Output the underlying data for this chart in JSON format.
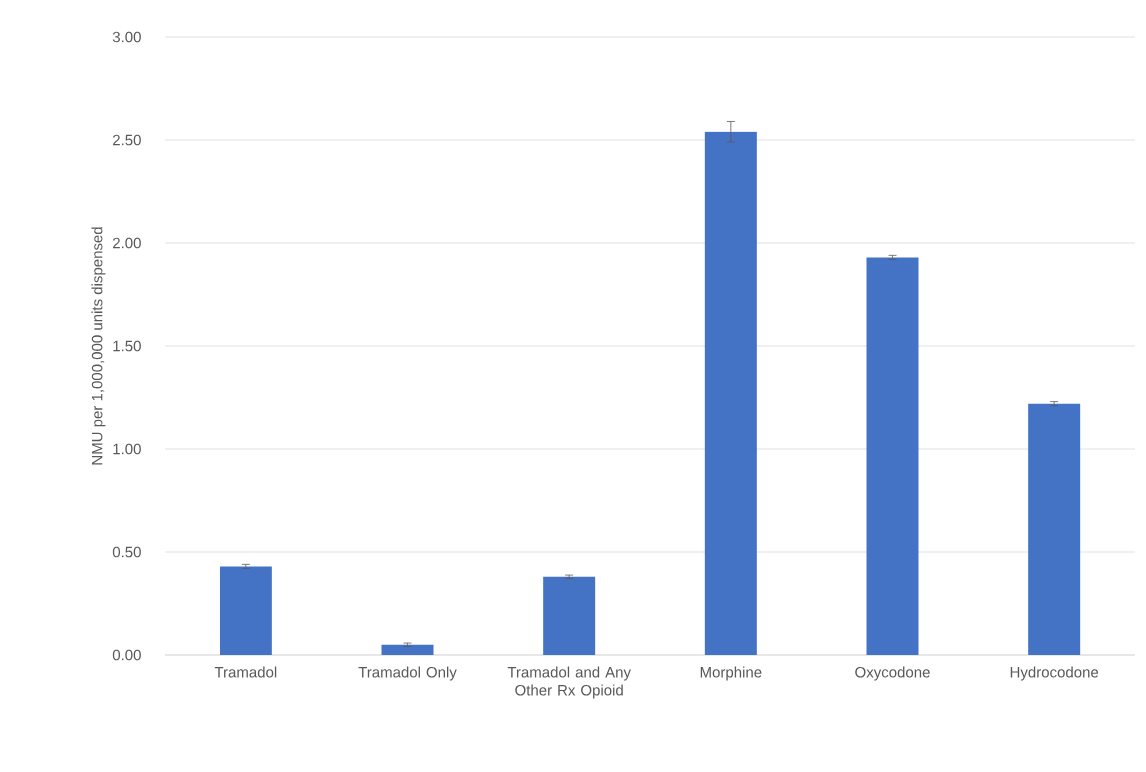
{
  "chart_data": {
    "type": "bar",
    "ylabel": "NMU per 1,000,000 units dispensed",
    "categories": [
      "Tramadol",
      "Tramadol Only",
      "Tramadol and Any Other Rx Opioid",
      "Morphine",
      "Oxycodone",
      "Hydrocodone"
    ],
    "values": [
      0.43,
      0.05,
      0.38,
      2.54,
      1.93,
      1.22
    ],
    "errors": [
      0.01,
      0.008,
      0.008,
      0.05,
      0.01,
      0.01
    ],
    "color": "#4472c4",
    "ylim": [
      0,
      3
    ],
    "yticks": [
      {
        "value": 0,
        "label": "0.00"
      },
      {
        "value": 0.5,
        "label": "0.50"
      },
      {
        "value": 1,
        "label": "1.00"
      },
      {
        "value": 1.5,
        "label": "1.50"
      },
      {
        "value": 2,
        "label": "2.00"
      },
      {
        "value": 2.5,
        "label": "2.50"
      },
      {
        "value": 3,
        "label": "3.00"
      }
    ],
    "grid": "y"
  }
}
